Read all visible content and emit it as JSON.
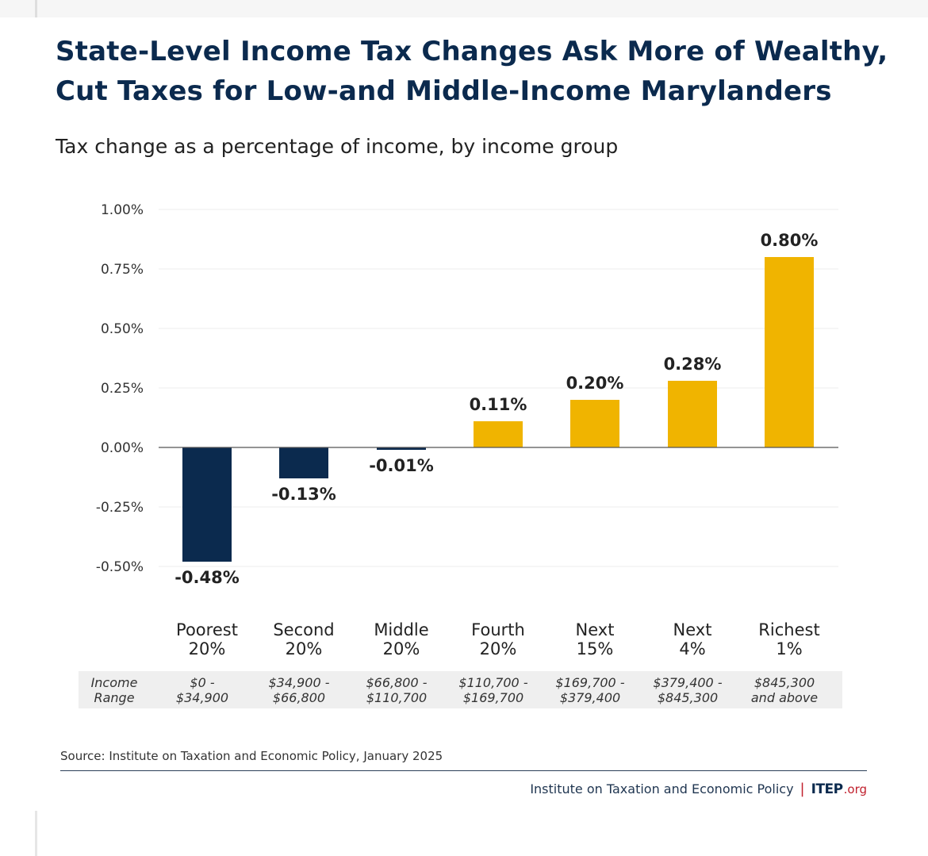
{
  "title": "State-Level Income Tax Changes Ask More of Wealthy, Cut Taxes for Low-and Middle-Income Marylanders",
  "subtitle": "Tax change as a percentage of income, by income group",
  "source": "Source: Institute on Taxation and Economic Policy, January 2025",
  "footer": {
    "org_name": "Institute on Taxation and Economic Policy",
    "separator": "|",
    "brand": "ITEP",
    "brand_suffix": ".org"
  },
  "colors": {
    "negative": "#0b2a4e",
    "positive": "#f0b400",
    "title": "#0b2a4e",
    "accent_red": "#c0202d"
  },
  "chart_data": {
    "type": "bar",
    "categories": [
      [
        "Poorest",
        "20%"
      ],
      [
        "Second",
        "20%"
      ],
      [
        "Middle",
        "20%"
      ],
      [
        "Fourth",
        "20%"
      ],
      [
        "Next",
        "15%"
      ],
      [
        "Next",
        "4%"
      ],
      [
        "Richest",
        "1%"
      ]
    ],
    "values": [
      -0.48,
      -0.13,
      -0.01,
      0.11,
      0.2,
      0.28,
      0.8
    ],
    "value_labels": [
      "-0.48%",
      "-0.13%",
      "-0.01%",
      "0.11%",
      "0.20%",
      "0.28%",
      "0.80%"
    ],
    "ylim": [
      -0.5,
      1.0
    ],
    "yticks": [
      1.0,
      0.75,
      0.5,
      0.25,
      0.0,
      -0.25,
      -0.5
    ],
    "ytick_labels": [
      "1.00%",
      "0.75%",
      "0.50%",
      "0.25%",
      "0.00%",
      "-0.25%",
      "-0.50%"
    ],
    "grid": true,
    "income_range_label": [
      "Income",
      "Range"
    ],
    "income_ranges": [
      [
        "$0 -",
        "$34,900"
      ],
      [
        "$34,900 -",
        "$66,800"
      ],
      [
        "$66,800 -",
        "$110,700"
      ],
      [
        "$110,700 -",
        "$169,700"
      ],
      [
        "$169,700 -",
        "$379,400"
      ],
      [
        "$379,400 -",
        "$845,300"
      ],
      [
        "$845,300",
        "and above"
      ]
    ]
  }
}
